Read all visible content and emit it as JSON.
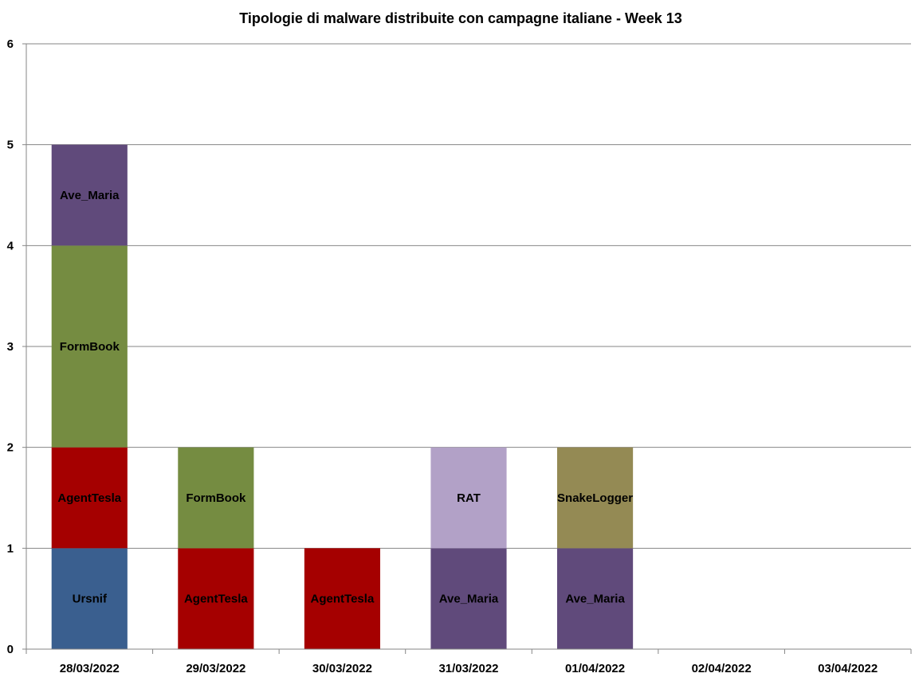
{
  "chart_data": {
    "type": "bar",
    "stacked": true,
    "title": "Tipologie di malware distribuite con campagne italiane - Week 13",
    "xlabel": "",
    "ylabel": "",
    "ylim": [
      0,
      6
    ],
    "yticks": [
      "0",
      "1",
      "2",
      "3",
      "4",
      "5",
      "6"
    ],
    "grid": true,
    "legend": "none",
    "categories": [
      "28/03/2022",
      "29/03/2022",
      "30/03/2022",
      "31/03/2022",
      "01/04/2022",
      "02/04/2022",
      "03/04/2022"
    ],
    "bars": [
      {
        "category": "28/03/2022",
        "segments": [
          {
            "label": "Ursnif",
            "value": 1,
            "color": "#3A5F8F"
          },
          {
            "label": "AgentTesla",
            "value": 1,
            "color": "#A50000"
          },
          {
            "label": "FormBook",
            "value": 2,
            "color": "#758C41"
          },
          {
            "label": "Ave_Maria",
            "value": 1,
            "color": "#604A7B"
          }
        ]
      },
      {
        "category": "29/03/2022",
        "segments": [
          {
            "label": "AgentTesla",
            "value": 1,
            "color": "#A50000"
          },
          {
            "label": "FormBook",
            "value": 1,
            "color": "#758C41"
          }
        ]
      },
      {
        "category": "30/03/2022",
        "segments": [
          {
            "label": "AgentTesla",
            "value": 1,
            "color": "#A50000"
          }
        ]
      },
      {
        "category": "31/03/2022",
        "segments": [
          {
            "label": "Ave_Maria",
            "value": 1,
            "color": "#604A7B"
          },
          {
            "label": "RAT",
            "value": 1,
            "color": "#B2A1C7"
          }
        ]
      },
      {
        "category": "01/04/2022",
        "segments": [
          {
            "label": "Ave_Maria",
            "value": 1,
            "color": "#604A7B"
          },
          {
            "label": "SnakeLogger",
            "value": 1,
            "color": "#948A54"
          }
        ]
      },
      {
        "category": "02/04/2022",
        "segments": []
      },
      {
        "category": "03/04/2022",
        "segments": []
      }
    ],
    "colors": {
      "gridline": "#868686",
      "axis": "#868686"
    }
  }
}
